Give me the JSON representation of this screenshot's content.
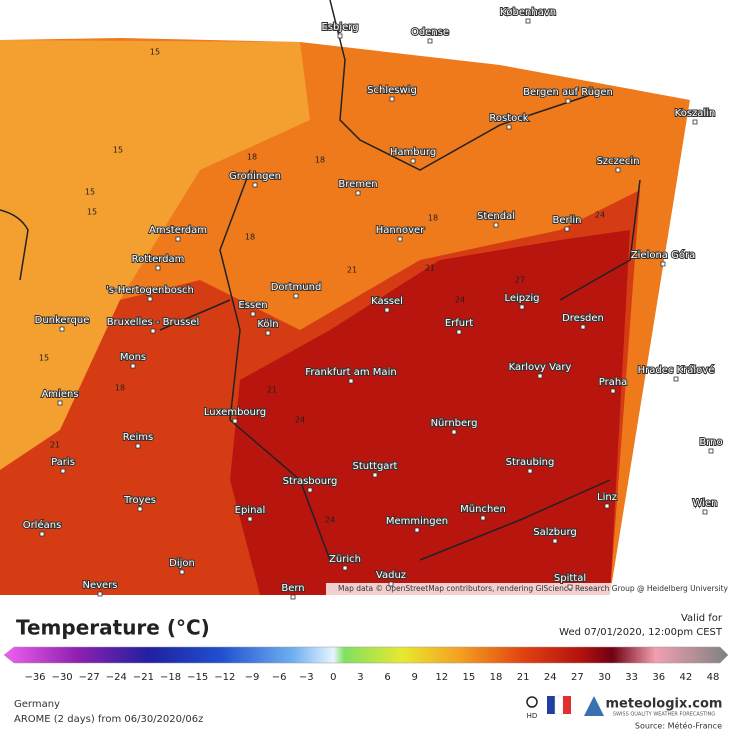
{
  "map": {
    "attribution": "Map data © OpenStreetMap contributors, rendering GIScience Research Group @ Heidelberg University",
    "cities": [
      "Esbjerg",
      "Odense",
      "København",
      "Schleswig",
      "Bergen auf Rügen",
      "Rostock",
      "Koszalin",
      "Hamburg",
      "Szczecin",
      "Groningen",
      "Bremen",
      "Amsterdam",
      "Hannover",
      "Stendal",
      "Berlin",
      "Zielona Góra",
      "Rotterdam",
      "'s-Hertogenbosch",
      "Dortmund",
      "Leipzig",
      "Dunkerque",
      "Bruxelles - Brussel",
      "Essen",
      "Kassel",
      "Köln",
      "Erfurt",
      "Dresden",
      "Mons",
      "Frankfurt am Main",
      "Karlovy Vary",
      "Hradec Králové",
      "Praha",
      "Amiens",
      "Luxembourg",
      "Nürnberg",
      "Reims",
      "Paris",
      "Stuttgart",
      "Straubing",
      "Strasbourg",
      "Troyes",
      "Epinal",
      "München",
      "Memmingen",
      "Orléans",
      "Zürich",
      "Dijon",
      "Salzburg",
      "Linz",
      "Nevers",
      "Vaduz",
      "Bern",
      "Spittal",
      "Wien",
      "Brno"
    ],
    "contour_labels": [
      "15",
      "15",
      "15",
      "15",
      "15",
      "18",
      "18",
      "18",
      "18",
      "18",
      "21",
      "21",
      "21",
      "21",
      "24",
      "24",
      "24",
      "24",
      "27"
    ]
  },
  "header": {
    "title": "Temperature (°C)",
    "valid_label": "Valid for",
    "valid_time": "Wed 07/01/2020, 12:00pm CEST"
  },
  "colorbar": {
    "ticks": [
      "−36",
      "−30",
      "−27",
      "−24",
      "−21",
      "−18",
      "−15",
      "−12",
      "−9",
      "−6",
      "−3",
      "0",
      "3",
      "6",
      "9",
      "12",
      "15",
      "18",
      "21",
      "24",
      "27",
      "30",
      "33",
      "36",
      "42",
      "48"
    ]
  },
  "footer": {
    "region": "Germany",
    "model": "AROME (2 days) from 06/30/2020/06z",
    "hd": "HD",
    "brand": "meteologix.com",
    "tagline": "SWISS QUALITY WEATHER FORECASTING",
    "source": "Source: Météo-France"
  }
}
